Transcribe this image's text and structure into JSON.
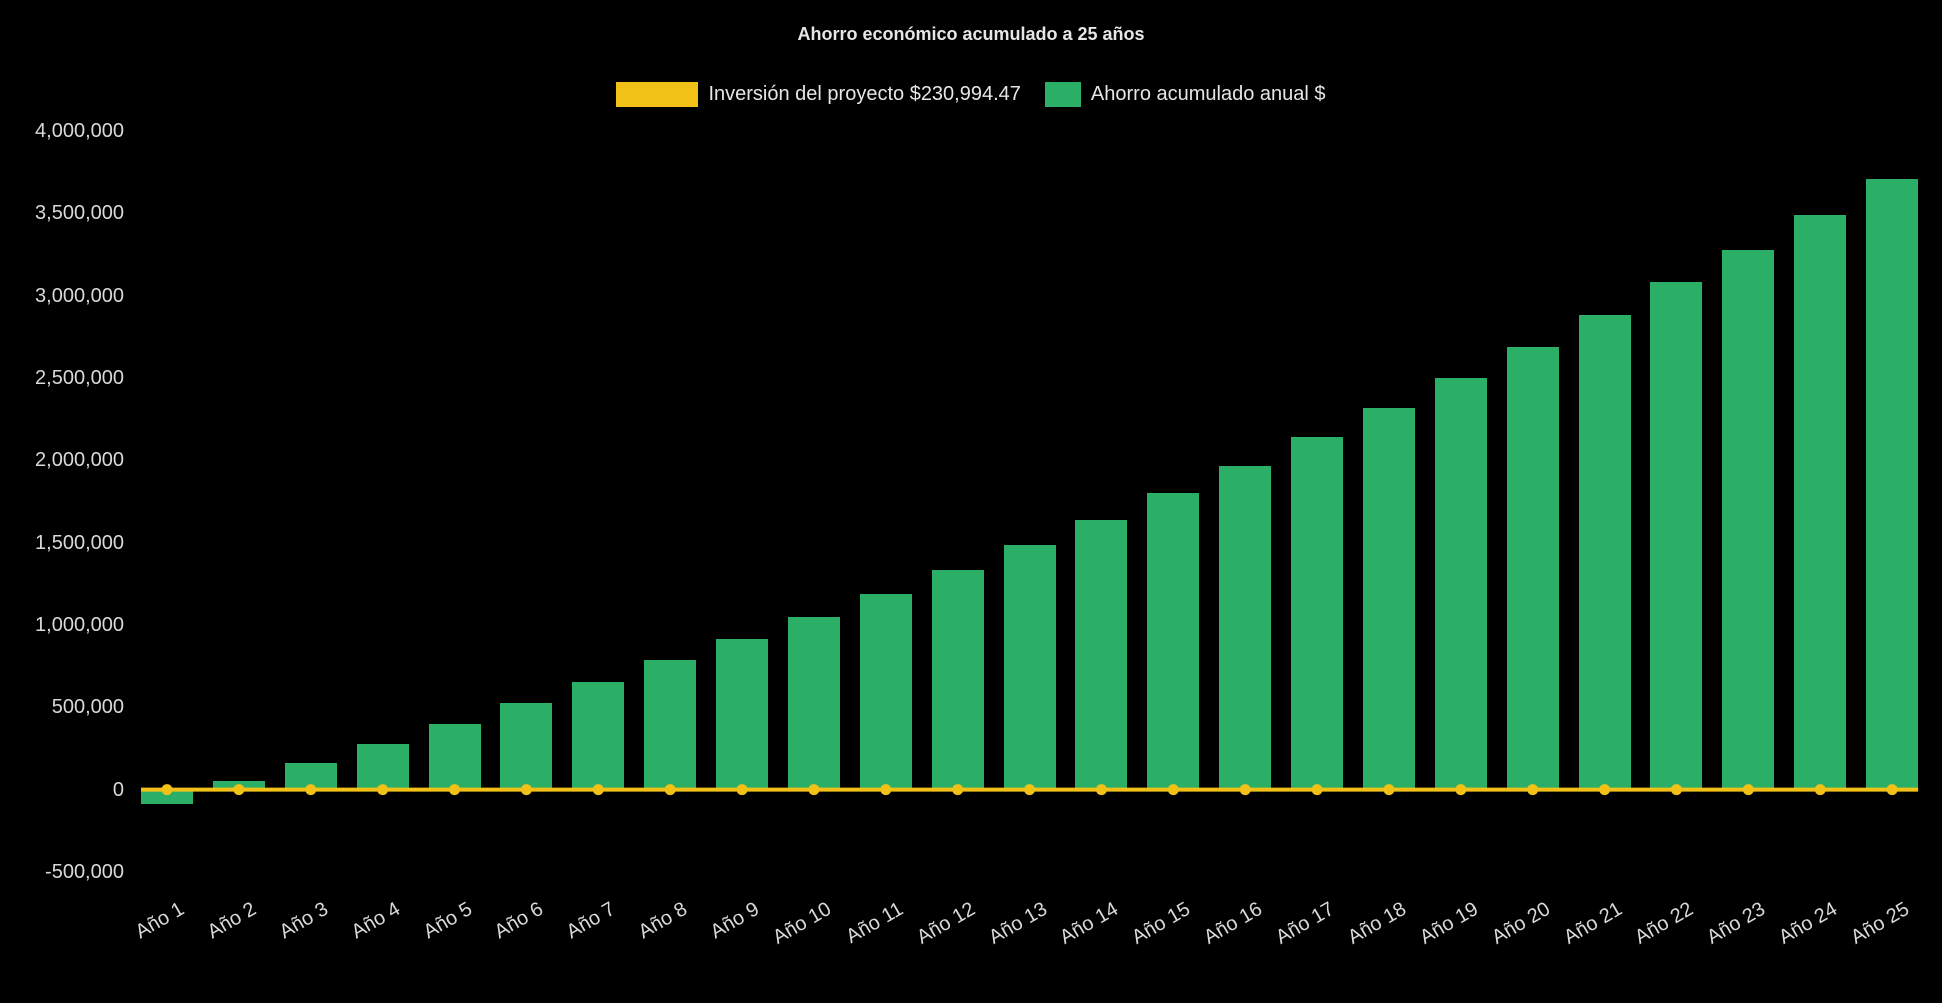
{
  "chart_data": {
    "type": "bar",
    "title": "Ahorro económico acumulado a 25 años",
    "background": "#000000",
    "title_color": "#e6e6e6",
    "axis_label_color": "#d9d9d9",
    "legend_position": "top",
    "grid": false,
    "xtick_rotation": -30,
    "ylim": [
      -500000,
      4000000
    ],
    "ytick_step": 500000,
    "ytick_labels": [
      "4,000,000",
      "3,500,000",
      "3,000,000",
      "2,500,000",
      "2,000,000",
      "1,500,000",
      "1,000,000",
      "500,000",
      "0",
      "-500,000"
    ],
    "categories": [
      "Año 1",
      "Año 2",
      "Año 3",
      "Año 4",
      "Año 5",
      "Año 6",
      "Año 7",
      "Año 8",
      "Año 9",
      "Año 10",
      "Año 11",
      "Año 12",
      "Año 13",
      "Año 14",
      "Año 15",
      "Año 16",
      "Año 17",
      "Año 18",
      "Año 19",
      "Año 20",
      "Año 21",
      "Año 22",
      "Año 23",
      "Año 24",
      "Año 25"
    ],
    "series": [
      {
        "name": "Inversión del proyecto $230,994.47",
        "type": "line",
        "color": "#f1c117",
        "values": [
          0,
          0,
          0,
          0,
          0,
          0,
          0,
          0,
          0,
          0,
          0,
          0,
          0,
          0,
          0,
          0,
          0,
          0,
          0,
          0,
          0,
          0,
          0,
          0,
          0
        ]
      },
      {
        "name": "Ahorro acumulado anual $",
        "type": "bar",
        "color": "#2baf66",
        "values": [
          -90000,
          50000,
          160000,
          280000,
          400000,
          525000,
          655000,
          785000,
          915000,
          1050000,
          1190000,
          1335000,
          1485000,
          1640000,
          1800000,
          1965000,
          2140000,
          2320000,
          2500000,
          2690000,
          2880000,
          3080000,
          3280000,
          3490000,
          3710000
        ]
      }
    ]
  }
}
